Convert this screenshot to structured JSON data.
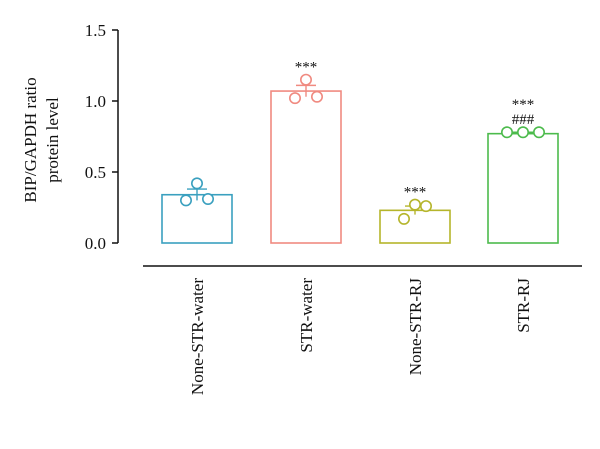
{
  "chart_data": {
    "type": "bar",
    "ylabel_lines": [
      "BIP/GAPDH ratio",
      "protein level"
    ],
    "ylim": [
      0,
      1.5
    ],
    "yticks": [
      "0.0",
      "0.5",
      "1.0",
      "1.5"
    ],
    "ytick_values": [
      0,
      0.5,
      1.0,
      1.5
    ],
    "grid": false,
    "categories": [
      "None-STR-water",
      "STR-water",
      "None-STR-RJ",
      "STR-RJ"
    ],
    "values": [
      0.34,
      1.07,
      0.23,
      0.77
    ],
    "errors": [
      0.04,
      0.04,
      0.03,
      0.01
    ],
    "points": [
      [
        0.42,
        0.3,
        0.31
      ],
      [
        1.15,
        1.02,
        1.03
      ],
      [
        0.27,
        0.17,
        0.26
      ],
      [
        0.78,
        0.78,
        0.78
      ]
    ],
    "colors": [
      "#3aa0bf",
      "#f08a80",
      "#b5b52b",
      "#4cbb4c"
    ],
    "annotations": [
      [],
      [
        "***"
      ],
      [
        "***"
      ],
      [
        "***",
        "###"
      ]
    ]
  }
}
